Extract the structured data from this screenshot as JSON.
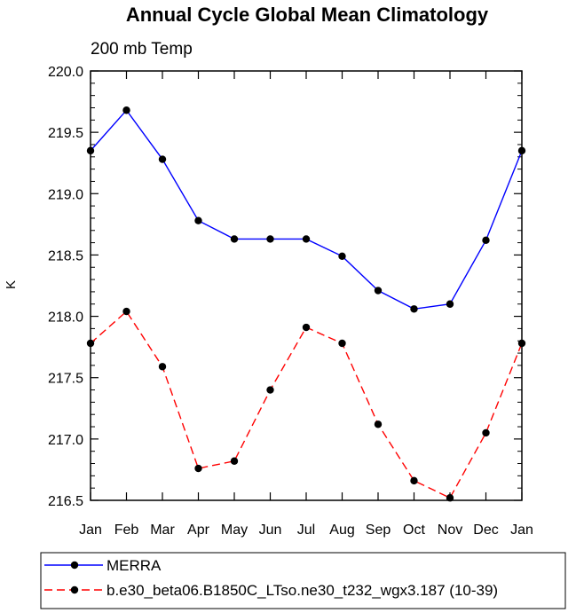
{
  "chart_data": {
    "type": "line",
    "title": "Annual Cycle Global Mean Climatology",
    "subtitle": "200 mb Temp",
    "xlabel": "",
    "ylabel": "K",
    "categories": [
      "Jan",
      "Feb",
      "Mar",
      "Apr",
      "May",
      "Jun",
      "Jul",
      "Aug",
      "Sep",
      "Oct",
      "Nov",
      "Dec",
      "Jan"
    ],
    "ylim": [
      216.5,
      220.0
    ],
    "yticks": [
      "216.5",
      "217.0",
      "217.5",
      "218.0",
      "218.5",
      "219.0",
      "219.5",
      "220.0"
    ],
    "grid": false,
    "legend_position": "bottom",
    "series": [
      {
        "name": "MERRA",
        "color": "#0000ff",
        "style": "solid",
        "values": [
          219.35,
          219.68,
          219.28,
          218.78,
          218.63,
          218.63,
          218.63,
          218.49,
          218.21,
          218.06,
          218.1,
          218.62,
          219.35
        ]
      },
      {
        "name": "b.e30_beta06.B1850C_LTso.ne30_t232_wgx3.187 (10-39)",
        "color": "#ff0000",
        "style": "dashed",
        "values": [
          217.78,
          218.04,
          217.59,
          216.76,
          216.82,
          217.4,
          217.91,
          217.78,
          217.12,
          216.66,
          216.52,
          217.05,
          217.78
        ]
      }
    ]
  }
}
